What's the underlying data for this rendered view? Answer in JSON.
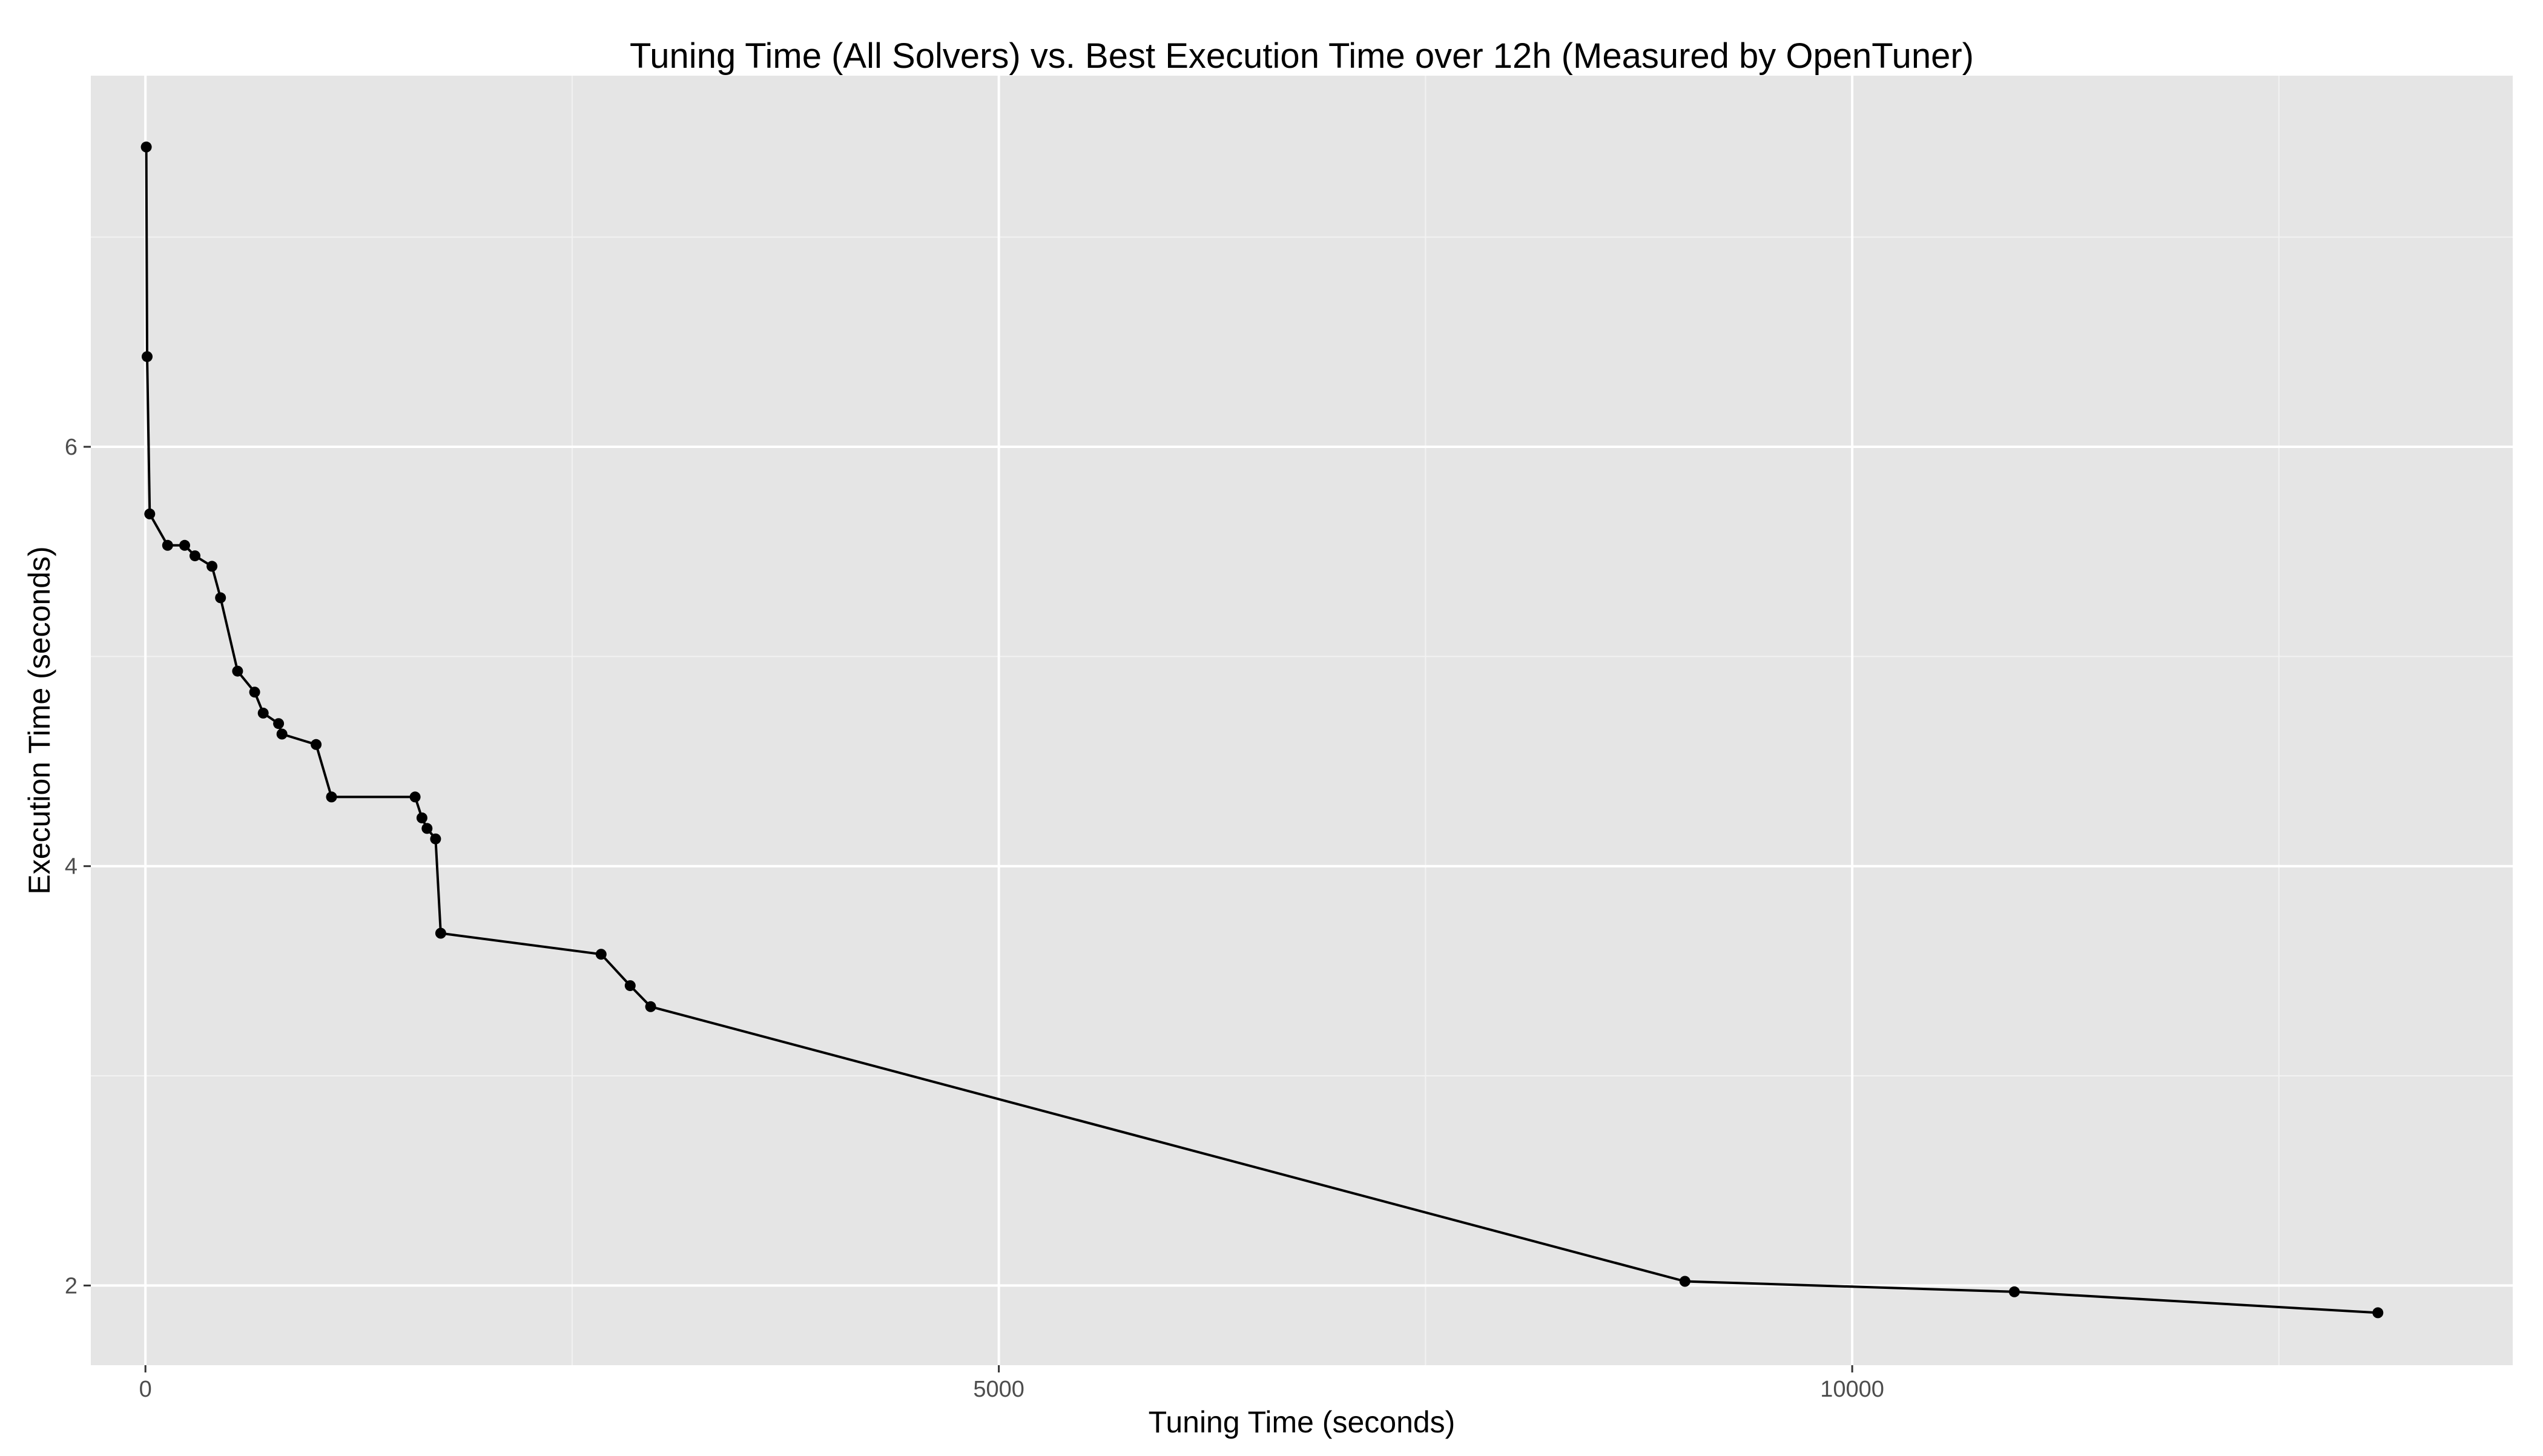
{
  "chart_data": {
    "type": "line",
    "title": "Tuning Time (All Solvers) vs. Best Execution Time over 12h (Measured by OpenTuner)",
    "xlabel": "Tuning Time (seconds)",
    "ylabel": "Execution Time (seconds)",
    "xlim": [
      -320,
      13870
    ],
    "ylim": [
      1.62,
      7.77
    ],
    "x_ticks": [
      0,
      5000,
      10000
    ],
    "x_tick_labels": [
      "0",
      "5000",
      "10000"
    ],
    "x_minor_ticks": [
      2500,
      7500,
      12500
    ],
    "y_ticks": [
      2,
      4,
      6
    ],
    "y_tick_labels": [
      "2",
      "4",
      "6"
    ],
    "y_minor_ticks": [
      3,
      5,
      7
    ],
    "grid": true,
    "legend": "none",
    "colors": {
      "panel_background": "#e5e5e5",
      "grid_major": "#ffffff",
      "grid_minor": "#f2f2f2",
      "line": "#000000",
      "point": "#000000",
      "tick_label": "#4d4d4d",
      "text": "#000000"
    },
    "series": [
      {
        "points": [
          {
            "x": 5,
            "y": 7.43
          },
          {
            "x": 10,
            "y": 6.43
          },
          {
            "x": 25,
            "y": 5.68
          },
          {
            "x": 130,
            "y": 5.53
          },
          {
            "x": 230,
            "y": 5.53
          },
          {
            "x": 290,
            "y": 5.48
          },
          {
            "x": 390,
            "y": 5.43
          },
          {
            "x": 440,
            "y": 5.28
          },
          {
            "x": 540,
            "y": 4.93
          },
          {
            "x": 640,
            "y": 4.83
          },
          {
            "x": 690,
            "y": 4.73
          },
          {
            "x": 780,
            "y": 4.68
          },
          {
            "x": 800,
            "y": 4.63
          },
          {
            "x": 1000,
            "y": 4.58
          },
          {
            "x": 1090,
            "y": 4.33
          },
          {
            "x": 1580,
            "y": 4.33
          },
          {
            "x": 1620,
            "y": 4.23
          },
          {
            "x": 1650,
            "y": 4.18
          },
          {
            "x": 1700,
            "y": 4.13
          },
          {
            "x": 1730,
            "y": 3.68
          },
          {
            "x": 2670,
            "y": 3.58
          },
          {
            "x": 2840,
            "y": 3.43
          },
          {
            "x": 2960,
            "y": 3.33
          },
          {
            "x": 9020,
            "y": 2.02
          },
          {
            "x": 10950,
            "y": 1.97
          },
          {
            "x": 13080,
            "y": 1.87
          }
        ]
      }
    ]
  }
}
